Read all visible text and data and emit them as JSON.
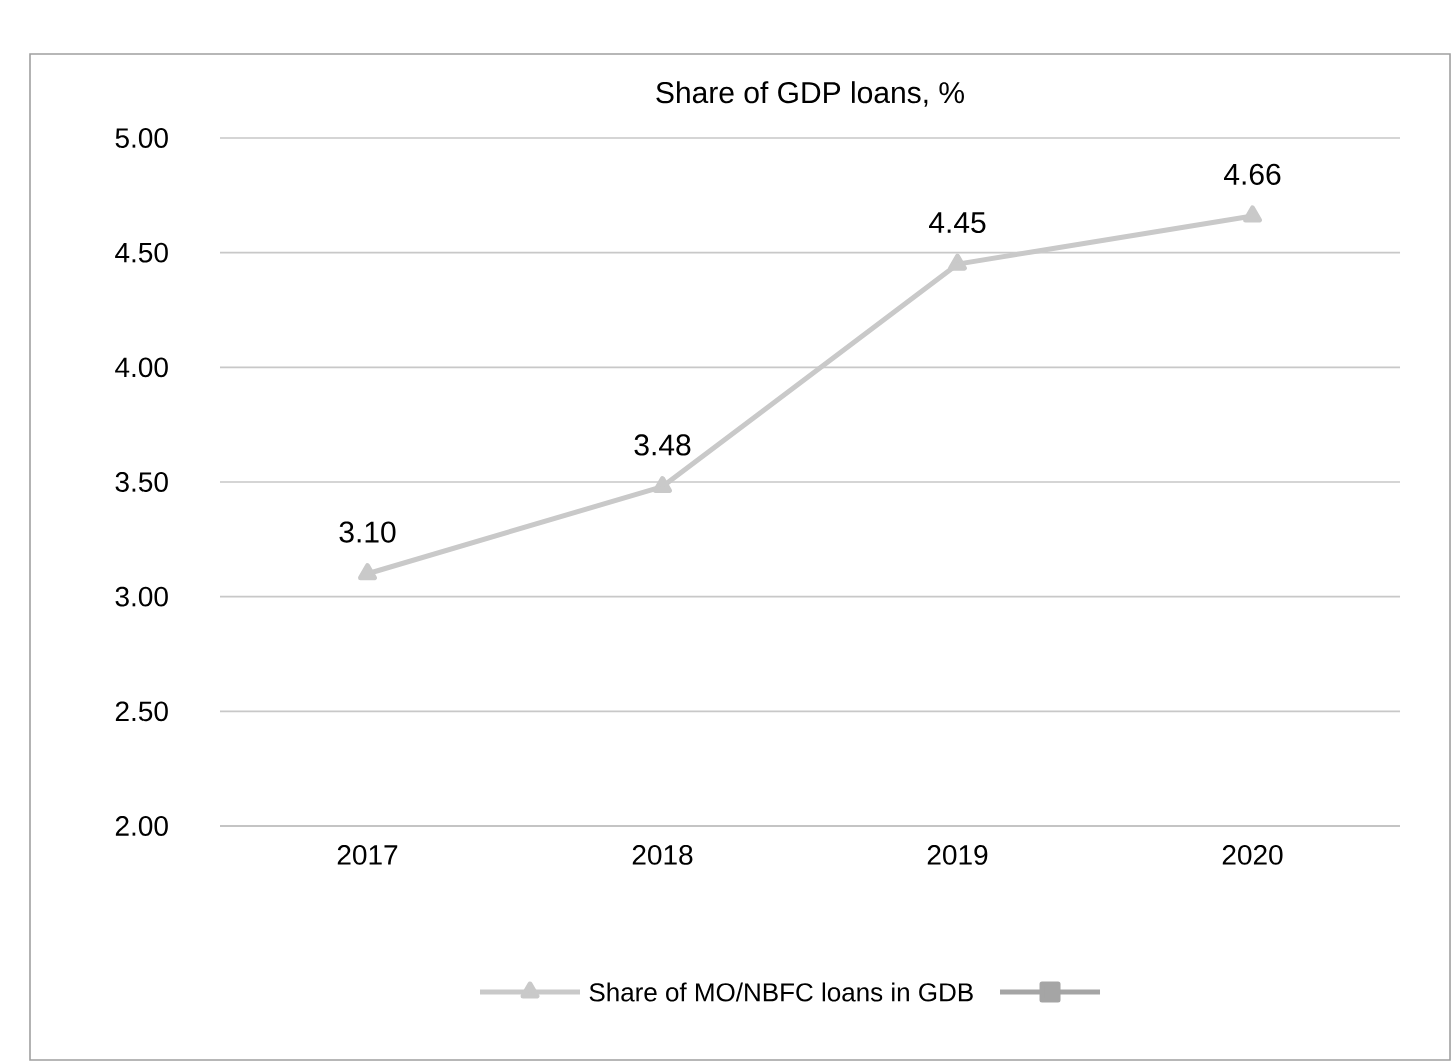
{
  "chart_data": {
    "type": "line",
    "title": "Share of GDP loans, %",
    "categories": [
      "2017",
      "2018",
      "2019",
      "2020"
    ],
    "series": [
      {
        "name": "Share of MO/NBFC loans in GDB",
        "color": "#c9c9c9",
        "marker": "triangle",
        "values": [
          3.1,
          3.48,
          4.45,
          4.66
        ],
        "value_labels": [
          "3.10",
          "3.48",
          "4.45",
          "4.66"
        ]
      },
      {
        "color": "#a5a5a5",
        "marker": "square",
        "values": [
          null,
          null,
          null,
          null
        ]
      }
    ],
    "ylim": [
      2,
      5
    ],
    "yticks": [
      {
        "value": 2,
        "label": "2.00"
      },
      {
        "value": 2.5,
        "label": "2.50"
      },
      {
        "value": 3,
        "label": "3.00"
      },
      {
        "value": 3.5,
        "label": "3.50"
      },
      {
        "value": 4,
        "label": "4.00"
      },
      {
        "value": 4.5,
        "label": "4.50"
      },
      {
        "value": 5,
        "label": "5.00"
      }
    ],
    "grid": "y",
    "legend": "bottom"
  }
}
